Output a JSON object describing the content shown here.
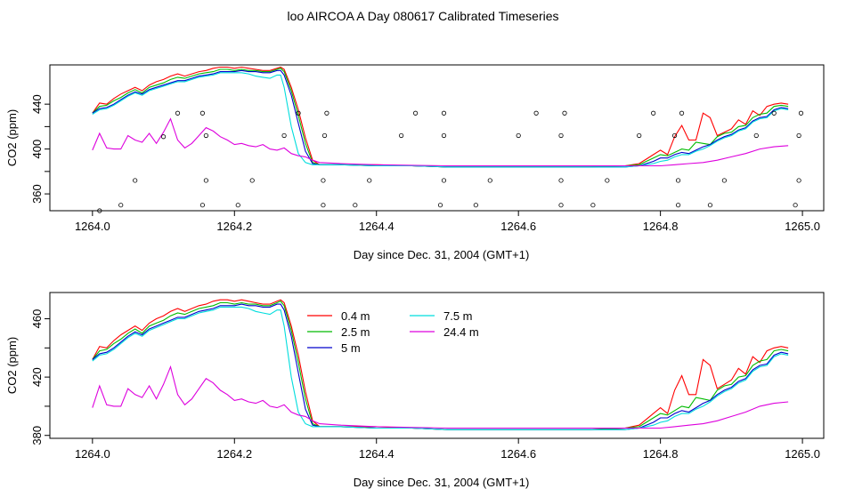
{
  "title": "loo AIRCOA A  Day 080617  Calibrated Timeseries",
  "chart_data": [
    {
      "type": "line",
      "xlabel": "Day since Dec. 31, 2004 (GMT+1)",
      "ylabel": "CO2 (ppm)",
      "xlim": [
        1263.94,
        1265.03
      ],
      "ylim": [
        345,
        475
      ],
      "xticks": [
        "1264.0",
        "1264.2",
        "1264.4",
        "1264.6",
        "1264.8",
        "1265.0"
      ],
      "yticks": [
        "360",
        "400",
        "440"
      ],
      "series": [
        {
          "color": "#ff0000",
          "x": [
            1264.0,
            1264.01,
            1264.02,
            1264.03,
            1264.04,
            1264.05,
            1264.06,
            1264.07,
            1264.08,
            1264.09,
            1264.1,
            1264.11,
            1264.12,
            1264.13,
            1264.14,
            1264.15,
            1264.16,
            1264.17,
            1264.18,
            1264.19,
            1264.2,
            1264.21,
            1264.22,
            1264.23,
            1264.24,
            1264.25,
            1264.26,
            1264.265,
            1264.27,
            1264.28,
            1264.29,
            1264.3,
            1264.31,
            1264.32,
            1264.33,
            1264.35,
            1264.4,
            1264.45,
            1264.5,
            1264.55,
            1264.6,
            1264.65,
            1264.7,
            1264.75,
            1264.77,
            1264.78,
            1264.79,
            1264.8,
            1264.81,
            1264.82,
            1264.83,
            1264.84,
            1264.85,
            1264.86,
            1264.87,
            1264.88,
            1264.89,
            1264.9,
            1264.91,
            1264.92,
            1264.93,
            1264.94,
            1264.95,
            1264.96,
            1264.97,
            1264.98
          ],
          "y": [
            432,
            441,
            440,
            445,
            449,
            452,
            455,
            452,
            457,
            460,
            462,
            465,
            467,
            465,
            467,
            469,
            470,
            472,
            473,
            473,
            472,
            473,
            472,
            471,
            470,
            470,
            472,
            473,
            471,
            455,
            435,
            410,
            390,
            386,
            386,
            386,
            386,
            385,
            384,
            384,
            384,
            384,
            384,
            385,
            387,
            391,
            395,
            399,
            395,
            411,
            421,
            408,
            408,
            432,
            428,
            412,
            415,
            418,
            426,
            422,
            434,
            430,
            438,
            440,
            441,
            440
          ]
        },
        {
          "color": "#00bb00",
          "x": [
            1264.0,
            1264.01,
            1264.02,
            1264.03,
            1264.04,
            1264.05,
            1264.06,
            1264.07,
            1264.08,
            1264.09,
            1264.1,
            1264.11,
            1264.12,
            1264.13,
            1264.14,
            1264.15,
            1264.16,
            1264.17,
            1264.18,
            1264.19,
            1264.2,
            1264.21,
            1264.22,
            1264.23,
            1264.24,
            1264.25,
            1264.26,
            1264.265,
            1264.27,
            1264.28,
            1264.29,
            1264.3,
            1264.31,
            1264.32,
            1264.33,
            1264.35,
            1264.4,
            1264.45,
            1264.5,
            1264.55,
            1264.6,
            1264.65,
            1264.7,
            1264.75,
            1264.77,
            1264.78,
            1264.79,
            1264.8,
            1264.81,
            1264.82,
            1264.83,
            1264.84,
            1264.85,
            1264.86,
            1264.87,
            1264.88,
            1264.89,
            1264.9,
            1264.91,
            1264.92,
            1264.93,
            1264.94,
            1264.95,
            1264.96,
            1264.97,
            1264.98
          ],
          "y": [
            432,
            438,
            439,
            443,
            446,
            450,
            453,
            450,
            455,
            457,
            459,
            462,
            464,
            463,
            465,
            467,
            468,
            469,
            471,
            471,
            470,
            471,
            470,
            470,
            469,
            469,
            471,
            472,
            469,
            452,
            430,
            405,
            388,
            386,
            386,
            386,
            385,
            385,
            384,
            384,
            384,
            384,
            384,
            385,
            386,
            389,
            392,
            395,
            394,
            397,
            400,
            399,
            406,
            405,
            404,
            411,
            414,
            415,
            420,
            421,
            428,
            431,
            432,
            438,
            439,
            438
          ]
        },
        {
          "color": "#0000cc",
          "x": [
            1264.0,
            1264.01,
            1264.02,
            1264.03,
            1264.04,
            1264.05,
            1264.06,
            1264.07,
            1264.08,
            1264.09,
            1264.1,
            1264.11,
            1264.12,
            1264.13,
            1264.14,
            1264.15,
            1264.16,
            1264.17,
            1264.18,
            1264.19,
            1264.2,
            1264.21,
            1264.22,
            1264.23,
            1264.24,
            1264.25,
            1264.26,
            1264.265,
            1264.27,
            1264.28,
            1264.29,
            1264.3,
            1264.31,
            1264.32,
            1264.33,
            1264.35,
            1264.4,
            1264.45,
            1264.5,
            1264.55,
            1264.6,
            1264.65,
            1264.7,
            1264.75,
            1264.77,
            1264.78,
            1264.79,
            1264.8,
            1264.81,
            1264.82,
            1264.83,
            1264.84,
            1264.85,
            1264.86,
            1264.87,
            1264.88,
            1264.89,
            1264.9,
            1264.91,
            1264.92,
            1264.93,
            1264.94,
            1264.95,
            1264.96,
            1264.97,
            1264.98
          ],
          "y": [
            432,
            436,
            437,
            440,
            444,
            448,
            451,
            449,
            453,
            455,
            457,
            459,
            461,
            461,
            463,
            465,
            466,
            467,
            469,
            469,
            469,
            470,
            469,
            469,
            468,
            468,
            470,
            470,
            466,
            448,
            423,
            398,
            387,
            386,
            386,
            386,
            385,
            385,
            384,
            384,
            384,
            384,
            384,
            384,
            385,
            387,
            389,
            392,
            392,
            395,
            397,
            396,
            399,
            402,
            404,
            408,
            411,
            413,
            417,
            419,
            425,
            428,
            429,
            435,
            437,
            436
          ]
        },
        {
          "color": "#00dddd",
          "x": [
            1264.0,
            1264.01,
            1264.02,
            1264.03,
            1264.04,
            1264.05,
            1264.06,
            1264.07,
            1264.08,
            1264.09,
            1264.1,
            1264.11,
            1264.12,
            1264.13,
            1264.14,
            1264.15,
            1264.16,
            1264.17,
            1264.18,
            1264.19,
            1264.2,
            1264.21,
            1264.22,
            1264.23,
            1264.24,
            1264.25,
            1264.26,
            1264.265,
            1264.27,
            1264.28,
            1264.29,
            1264.3,
            1264.31,
            1264.32,
            1264.33,
            1264.35,
            1264.4,
            1264.45,
            1264.5,
            1264.55,
            1264.6,
            1264.65,
            1264.7,
            1264.75,
            1264.77,
            1264.78,
            1264.79,
            1264.8,
            1264.81,
            1264.82,
            1264.83,
            1264.84,
            1264.85,
            1264.86,
            1264.87,
            1264.88,
            1264.89,
            1264.9,
            1264.91,
            1264.92,
            1264.93,
            1264.94,
            1264.95,
            1264.96,
            1264.97,
            1264.98
          ],
          "y": [
            431,
            435,
            436,
            439,
            443,
            447,
            450,
            448,
            452,
            454,
            456,
            458,
            460,
            460,
            462,
            464,
            465,
            466,
            468,
            468,
            468,
            468,
            467,
            465,
            464,
            463,
            466,
            466,
            455,
            420,
            396,
            388,
            386,
            386,
            386,
            386,
            385,
            385,
            384,
            384,
            384,
            384,
            384,
            384,
            385,
            386,
            387,
            389,
            390,
            393,
            395,
            395,
            398,
            400,
            403,
            407,
            410,
            412,
            416,
            418,
            424,
            427,
            428,
            434,
            436,
            435
          ]
        },
        {
          "color": "#dd00dd",
          "x": [
            1264.0,
            1264.01,
            1264.02,
            1264.03,
            1264.04,
            1264.05,
            1264.06,
            1264.07,
            1264.08,
            1264.09,
            1264.1,
            1264.11,
            1264.12,
            1264.13,
            1264.14,
            1264.15,
            1264.16,
            1264.17,
            1264.18,
            1264.19,
            1264.2,
            1264.21,
            1264.22,
            1264.23,
            1264.24,
            1264.25,
            1264.26,
            1264.27,
            1264.28,
            1264.29,
            1264.3,
            1264.31,
            1264.32,
            1264.35,
            1264.4,
            1264.5,
            1264.6,
            1264.7,
            1264.75,
            1264.8,
            1264.82,
            1264.84,
            1264.86,
            1264.88,
            1264.9,
            1264.92,
            1264.94,
            1264.96,
            1264.98
          ],
          "y": [
            399,
            414,
            401,
            400,
            400,
            412,
            408,
            406,
            414,
            405,
            415,
            427,
            408,
            401,
            405,
            412,
            419,
            416,
            411,
            408,
            404,
            405,
            403,
            402,
            404,
            400,
            399,
            401,
            396,
            394,
            393,
            390,
            388,
            387,
            386,
            385,
            385,
            385,
            385,
            385,
            386,
            387,
            388,
            390,
            393,
            396,
            400,
            402,
            403
          ]
        }
      ],
      "scatter": {
        "x": [
          1264.01,
          1264.04,
          1264.06,
          1264.1,
          1264.12,
          1264.155,
          1264.16,
          1264.16,
          1264.155,
          1264.205,
          1264.225,
          1264.27,
          1264.29,
          1264.325,
          1264.325,
          1264.327,
          1264.33,
          1264.37,
          1264.39,
          1264.435,
          1264.455,
          1264.49,
          1264.495,
          1264.495,
          1264.495,
          1264.54,
          1264.56,
          1264.6,
          1264.625,
          1264.66,
          1264.66,
          1264.66,
          1264.665,
          1264.705,
          1264.725,
          1264.77,
          1264.79,
          1264.825,
          1264.825,
          1264.82,
          1264.83,
          1264.87,
          1264.89,
          1264.935,
          1264.96,
          1264.99,
          1264.995,
          1264.995,
          1264.998
        ],
        "y": [
          345,
          350,
          372,
          411,
          432,
          350,
          372,
          412,
          432,
          350,
          372,
          412,
          432,
          350,
          372,
          412,
          432,
          350,
          372,
          412,
          432,
          350,
          372,
          412,
          432,
          350,
          372,
          412,
          432,
          350,
          372,
          412,
          432,
          350,
          372,
          412,
          432,
          350,
          372,
          412,
          432,
          350,
          372,
          412,
          432,
          350,
          372,
          412,
          432
        ]
      }
    },
    {
      "type": "line",
      "xlabel": "Day since Dec. 31, 2004 (GMT+1)",
      "ylabel": "CO2 (ppm)",
      "xlim": [
        1263.94,
        1265.03
      ],
      "ylim": [
        378,
        478
      ],
      "xticks": [
        "1264.0",
        "1264.2",
        "1264.4",
        "1264.6",
        "1264.8",
        "1265.0"
      ],
      "yticks": [
        "380",
        "420",
        "460"
      ],
      "legend": [
        "0.4 m",
        "2.5 m",
        "5 m",
        "7.5 m",
        "24.4 m"
      ],
      "legend_position": "top-center"
    }
  ]
}
